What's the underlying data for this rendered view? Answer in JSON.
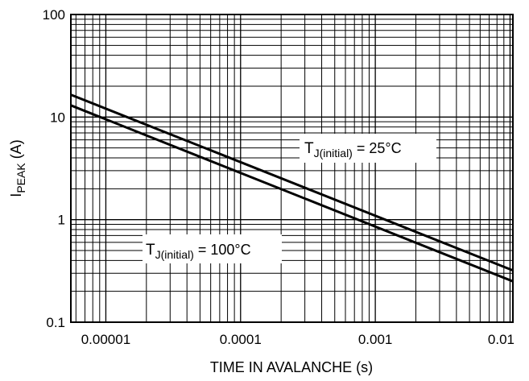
{
  "chart_data": {
    "type": "line",
    "title": "",
    "xlabel": "TIME IN AVALANCHE (s)",
    "ylabel": {
      "main": "I",
      "sub": "PEAK",
      "suffix": " (A)"
    },
    "xscale": "log",
    "yscale": "log",
    "xlim": [
      5.5e-06,
      0.0105
    ],
    "ylim": [
      0.1,
      100
    ],
    "grid": true,
    "x_ticks": [
      {
        "value": 1e-05,
        "label": "0.00001"
      },
      {
        "value": 0.0001,
        "label": "0.0001"
      },
      {
        "value": 0.001,
        "label": "0.001"
      },
      {
        "value": 0.01,
        "label": "0.01"
      }
    ],
    "y_ticks": [
      {
        "value": 0.1,
        "label": "0.1"
      },
      {
        "value": 1,
        "label": "1"
      },
      {
        "value": 10,
        "label": "10"
      },
      {
        "value": 100,
        "label": "100"
      }
    ],
    "series": [
      {
        "x": [
          5.5e-06,
          0.0105
        ],
        "y": [
          16.5,
          0.32
        ]
      },
      {
        "x": [
          5.5e-06,
          0.0105
        ],
        "y": [
          13.0,
          0.25
        ]
      }
    ],
    "annotations": [
      {
        "main": "T",
        "sub": "J(initial)",
        "suffix": " = 25°C",
        "series": 0
      },
      {
        "main": "T",
        "sub": "J(initial)",
        "suffix": " = 100°C",
        "series": 1
      }
    ]
  }
}
